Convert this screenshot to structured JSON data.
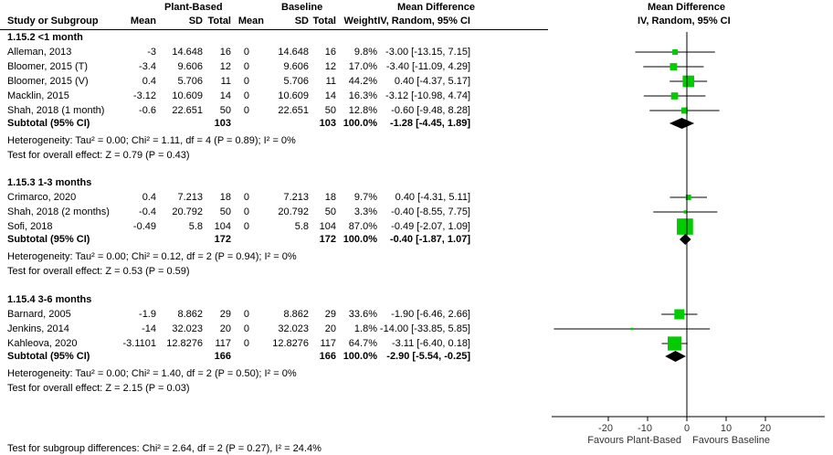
{
  "chart_data": {
    "type": "forest",
    "headers": {
      "group1": "Plant-Based",
      "group2": "Baseline",
      "effect": "Mean Difference",
      "plot_title": "Mean Difference",
      "study": "Study or Subgroup",
      "mean": "Mean",
      "sd": "SD",
      "total": "Total",
      "weight": "Weight",
      "method": "IV, Random, 95% CI",
      "plot_method": "IV, Random, 95% CI"
    },
    "subgroups": [
      {
        "title": "1.15.2 <1 month",
        "studies": [
          {
            "name": "Alleman, 2013",
            "m1": "-3",
            "sd1": "14.648",
            "n1": "16",
            "m2": "0",
            "sd2": "14.648",
            "n2": "16",
            "weight": "9.8%",
            "ci": "-3.00 [-13.15, 7.15]",
            "md": -3.0,
            "lo": -13.15,
            "hi": 7.15,
            "w": 9.8
          },
          {
            "name": "Bloomer, 2015 (T)",
            "m1": "-3.4",
            "sd1": "9.606",
            "n1": "12",
            "m2": "0",
            "sd2": "9.606",
            "n2": "12",
            "weight": "17.0%",
            "ci": "-3.40 [-11.09, 4.29]",
            "md": -3.4,
            "lo": -11.09,
            "hi": 4.29,
            "w": 17.0
          },
          {
            "name": "Bloomer, 2015 (V)",
            "m1": "0.4",
            "sd1": "5.706",
            "n1": "11",
            "m2": "0",
            "sd2": "5.706",
            "n2": "11",
            "weight": "44.2%",
            "ci": "0.40 [-4.37, 5.17]",
            "md": 0.4,
            "lo": -4.37,
            "hi": 5.17,
            "w": 44.2
          },
          {
            "name": "Macklin, 2015",
            "m1": "-3.12",
            "sd1": "10.609",
            "n1": "14",
            "m2": "0",
            "sd2": "10.609",
            "n2": "14",
            "weight": "16.3%",
            "ci": "-3.12 [-10.98, 4.74]",
            "md": -3.12,
            "lo": -10.98,
            "hi": 4.74,
            "w": 16.3
          },
          {
            "name": "Shah, 2018 (1 month)",
            "m1": "-0.6",
            "sd1": "22.651",
            "n1": "50",
            "m2": "0",
            "sd2": "22.651",
            "n2": "50",
            "weight": "12.8%",
            "ci": "-0.60 [-9.48, 8.28]",
            "md": -0.6,
            "lo": -9.48,
            "hi": 8.28,
            "w": 12.8
          }
        ],
        "subtotal": {
          "label": "Subtotal (95% CI)",
          "n1": "103",
          "n2": "103",
          "weight": "100.0%",
          "ci": "-1.28 [-4.45, 1.89]",
          "md": -1.28,
          "lo": -4.45,
          "hi": 1.89
        },
        "heterogeneity": "Heterogeneity: Tau² = 0.00; Chi² = 1.11, df = 4 (P = 0.89); I² = 0%",
        "overall": "Test for overall effect: Z = 0.79 (P = 0.43)"
      },
      {
        "title": "1.15.3 1-3 months",
        "studies": [
          {
            "name": "Crimarco, 2020",
            "m1": "0.4",
            "sd1": "7.213",
            "n1": "18",
            "m2": "0",
            "sd2": "7.213",
            "n2": "18",
            "weight": "9.7%",
            "ci": "0.40 [-4.31, 5.11]",
            "md": 0.4,
            "lo": -4.31,
            "hi": 5.11,
            "w": 9.7
          },
          {
            "name": "Shah, 2018 (2 months)",
            "m1": "-0.4",
            "sd1": "20.792",
            "n1": "50",
            "m2": "0",
            "sd2": "20.792",
            "n2": "50",
            "weight": "3.3%",
            "ci": "-0.40 [-8.55, 7.75]",
            "md": -0.4,
            "lo": -8.55,
            "hi": 7.75,
            "w": 3.3
          },
          {
            "name": "Sofi, 2018",
            "m1": "-0.49",
            "sd1": "5.8",
            "n1": "104",
            "m2": "0",
            "sd2": "5.8",
            "n2": "104",
            "weight": "87.0%",
            "ci": "-0.49 [-2.07, 1.09]",
            "md": -0.49,
            "lo": -2.07,
            "hi": 1.09,
            "w": 87.0
          }
        ],
        "subtotal": {
          "label": "Subtotal (95% CI)",
          "n1": "172",
          "n2": "172",
          "weight": "100.0%",
          "ci": "-0.40 [-1.87, 1.07]",
          "md": -0.4,
          "lo": -1.87,
          "hi": 1.07
        },
        "heterogeneity": "Heterogeneity: Tau² = 0.00; Chi² = 0.12, df = 2 (P = 0.94); I² = 0%",
        "overall": "Test for overall effect: Z = 0.53 (P = 0.59)"
      },
      {
        "title": "1.15.4 3-6 months",
        "studies": [
          {
            "name": "Barnard, 2005",
            "m1": "-1.9",
            "sd1": "8.862",
            "n1": "29",
            "m2": "0",
            "sd2": "8.862",
            "n2": "29",
            "weight": "33.6%",
            "ci": "-1.90 [-6.46, 2.66]",
            "md": -1.9,
            "lo": -6.46,
            "hi": 2.66,
            "w": 33.6
          },
          {
            "name": "Jenkins, 2014",
            "m1": "-14",
            "sd1": "32.023",
            "n1": "20",
            "m2": "0",
            "sd2": "32.023",
            "n2": "20",
            "weight": "1.8%",
            "ci": "-14.00 [-33.85, 5.85]",
            "md": -14.0,
            "lo": -33.85,
            "hi": 5.85,
            "w": 1.8
          },
          {
            "name": "Kahleova, 2020",
            "m1": "-3.1101",
            "sd1": "12.8276",
            "n1": "117",
            "m2": "0",
            "sd2": "12.8276",
            "n2": "117",
            "weight": "64.7%",
            "ci": "-3.11 [-6.40, 0.18]",
            "md": -3.11,
            "lo": -6.4,
            "hi": 0.18,
            "w": 64.7
          }
        ],
        "subtotal": {
          "label": "Subtotal (95% CI)",
          "n1": "166",
          "n2": "166",
          "weight": "100.0%",
          "ci": "-2.90 [-5.54, -0.25]",
          "md": -2.9,
          "lo": -5.54,
          "hi": -0.25
        },
        "heterogeneity": "Heterogeneity: Tau² = 0.00; Chi² = 1.40, df = 2 (P = 0.50); I² = 0%",
        "overall": "Test for overall effect: Z = 2.15 (P = 0.03)"
      }
    ],
    "subgroup_test": "Test for subgroup differences: Chi² = 2.64, df = 2 (P = 0.27), I² = 24.4%",
    "x_axis": {
      "ticks": [
        -20,
        -10,
        0,
        10,
        20
      ],
      "range": [
        -35,
        35
      ],
      "left_label": "Favours Plant-Based",
      "right_label": "Favours Baseline"
    },
    "colors": {
      "square": "#00CC00",
      "diamond": "#000000",
      "lines": "#000000"
    }
  }
}
